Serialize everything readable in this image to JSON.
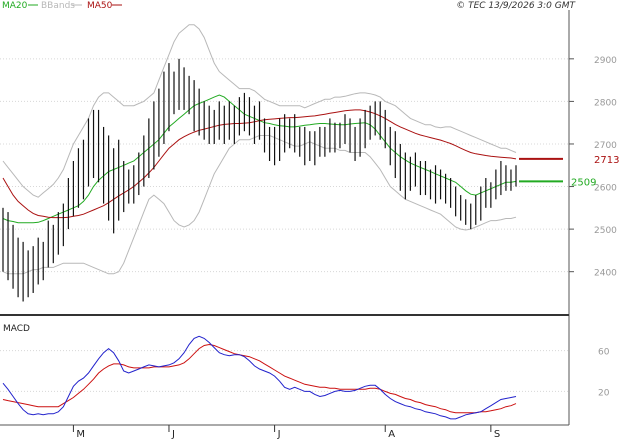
{
  "header": {
    "legend": [
      {
        "label": "MA20",
        "color": "#22aa22"
      },
      {
        "label": "BBands",
        "color": "#b8b8b8"
      },
      {
        "label": "MA50",
        "color": "#aa1111"
      }
    ],
    "copyright": "© TEC 13/9/2026 3:0 GMT"
  },
  "chart_data": [
    {
      "type": "bar",
      "subtype": "ohlc",
      "title": "",
      "ylim": [
        2310,
        3010
      ],
      "yticks": [
        2400,
        2500,
        2600,
        2700,
        2800,
        2900
      ],
      "ytick_labels": [
        "2400",
        "2500",
        "2600",
        "2700",
        "2800",
        "2900"
      ],
      "grid": true,
      "month_labels": [
        {
          "label": "M",
          "index": 14
        },
        {
          "label": "J",
          "index": 33
        },
        {
          "label": "J",
          "index": 54
        },
        {
          "label": "A",
          "index": 76
        },
        {
          "label": "S",
          "index": 97
        }
      ],
      "bars_high": [
        2550,
        2540,
        2510,
        2480,
        2470,
        2450,
        2460,
        2480,
        2470,
        2520,
        2510,
        2540,
        2560,
        2620,
        2660,
        2690,
        2710,
        2760,
        2780,
        2780,
        2740,
        2720,
        2690,
        2710,
        2660,
        2640,
        2650,
        2680,
        2720,
        2760,
        2800,
        2830,
        2870,
        2890,
        2870,
        2900,
        2880,
        2860,
        2850,
        2830,
        2800,
        2790,
        2780,
        2800,
        2790,
        2800,
        2790,
        2810,
        2820,
        2810,
        2790,
        2800,
        2760,
        2740,
        2740,
        2760,
        2770,
        2760,
        2770,
        2740,
        2740,
        2730,
        2730,
        2740,
        2740,
        2760,
        2750,
        2750,
        2770,
        2760,
        2740,
        2760,
        2780,
        2790,
        2800,
        2800,
        2780,
        2740,
        2730,
        2700,
        2680,
        2670,
        2680,
        2660,
        2660,
        2640,
        2650,
        2640,
        2630,
        2620,
        2600,
        2580,
        2570,
        2560,
        2580,
        2600,
        2620,
        2610,
        2640,
        2660,
        2650,
        2640,
        2650
      ],
      "bars_low": [
        2400,
        2380,
        2360,
        2340,
        2330,
        2340,
        2350,
        2370,
        2380,
        2410,
        2420,
        2440,
        2460,
        2500,
        2530,
        2550,
        2570,
        2600,
        2620,
        2610,
        2560,
        2520,
        2490,
        2520,
        2540,
        2560,
        2560,
        2580,
        2600,
        2620,
        2640,
        2670,
        2700,
        2730,
        2770,
        2780,
        2780,
        2770,
        2730,
        2720,
        2710,
        2700,
        2700,
        2710,
        2700,
        2710,
        2700,
        2720,
        2730,
        2720,
        2700,
        2710,
        2680,
        2660,
        2650,
        2660,
        2680,
        2690,
        2680,
        2670,
        2650,
        2660,
        2650,
        2670,
        2670,
        2680,
        2680,
        2690,
        2700,
        2680,
        2660,
        2670,
        2690,
        2710,
        2720,
        2710,
        2690,
        2650,
        2620,
        2590,
        2570,
        2590,
        2600,
        2580,
        2580,
        2570,
        2560,
        2570,
        2560,
        2550,
        2530,
        2520,
        2510,
        2500,
        2510,
        2520,
        2550,
        2550,
        2570,
        2580,
        2590,
        2590,
        2600
      ],
      "series": [
        {
          "name": "MA20",
          "color": "#22aa22",
          "values": [
            2525,
            2520,
            2518,
            2515,
            2515,
            2515,
            2515,
            2516,
            2520,
            2525,
            2530,
            2535,
            2540,
            2545,
            2550,
            2555,
            2565,
            2580,
            2600,
            2615,
            2625,
            2635,
            2640,
            2645,
            2650,
            2655,
            2660,
            2670,
            2680,
            2690,
            2700,
            2710,
            2725,
            2740,
            2750,
            2760,
            2770,
            2780,
            2790,
            2795,
            2800,
            2805,
            2810,
            2815,
            2810,
            2800,
            2790,
            2780,
            2770,
            2765,
            2760,
            2755,
            2750,
            2748,
            2745,
            2743,
            2742,
            2740,
            2740,
            2742,
            2744,
            2745,
            2747,
            2748,
            2748,
            2747,
            2746,
            2745,
            2745,
            2747,
            2748,
            2749,
            2750,
            2745,
            2735,
            2720,
            2705,
            2690,
            2680,
            2670,
            2662,
            2655,
            2650,
            2645,
            2640,
            2635,
            2630,
            2625,
            2620,
            2615,
            2610,
            2600,
            2590,
            2582,
            2580,
            2585,
            2590,
            2595,
            2600,
            2605,
            2610,
            2610,
            2612
          ]
        },
        {
          "name": "MA50",
          "color": "#aa1111",
          "values": [
            2620,
            2600,
            2580,
            2565,
            2555,
            2545,
            2537,
            2532,
            2530,
            2528,
            2527,
            2527,
            2527,
            2528,
            2530,
            2532,
            2535,
            2540,
            2545,
            2550,
            2555,
            2562,
            2570,
            2578,
            2585,
            2592,
            2600,
            2610,
            2620,
            2632,
            2645,
            2660,
            2675,
            2690,
            2700,
            2710,
            2717,
            2723,
            2728,
            2732,
            2735,
            2738,
            2741,
            2744,
            2746,
            2747,
            2748,
            2748,
            2749,
            2750,
            2752,
            2755,
            2757,
            2758,
            2759,
            2760,
            2761,
            2762,
            2762,
            2763,
            2764,
            2765,
            2766,
            2768,
            2770,
            2772,
            2774,
            2776,
            2778,
            2779,
            2780,
            2780,
            2778,
            2775,
            2771,
            2766,
            2760,
            2753,
            2746,
            2740,
            2735,
            2730,
            2725,
            2721,
            2718,
            2715,
            2712,
            2709,
            2705,
            2701,
            2696,
            2690,
            2685,
            2680,
            2677,
            2675,
            2673,
            2671,
            2670,
            2669,
            2668,
            2667,
            2665
          ]
        },
        {
          "name": "BBands",
          "color": "#b8b8b8",
          "values_upper": [
            2660,
            2645,
            2630,
            2615,
            2600,
            2590,
            2580,
            2575,
            2585,
            2595,
            2605,
            2620,
            2640,
            2670,
            2700,
            2720,
            2740,
            2760,
            2790,
            2810,
            2820,
            2820,
            2810,
            2800,
            2790,
            2790,
            2790,
            2795,
            2800,
            2810,
            2820,
            2850,
            2880,
            2910,
            2940,
            2960,
            2970,
            2980,
            2980,
            2970,
            2950,
            2920,
            2890,
            2870,
            2860,
            2850,
            2840,
            2830,
            2830,
            2830,
            2825,
            2815,
            2805,
            2800,
            2795,
            2790,
            2790,
            2790,
            2790,
            2790,
            2785,
            2790,
            2795,
            2800,
            2805,
            2805,
            2810,
            2810,
            2812,
            2815,
            2818,
            2820,
            2820,
            2818,
            2815,
            2810,
            2800,
            2795,
            2790,
            2780,
            2770,
            2760,
            2755,
            2750,
            2745,
            2745,
            2740,
            2738,
            2740,
            2740,
            2735,
            2730,
            2725,
            2720,
            2715,
            2710,
            2705,
            2700,
            2695,
            2690,
            2690,
            2685,
            2680
          ],
          "values_lower": [
            2400,
            2395,
            2395,
            2395,
            2395,
            2400,
            2405,
            2405,
            2410,
            2410,
            2410,
            2415,
            2420,
            2420,
            2420,
            2420,
            2420,
            2415,
            2410,
            2405,
            2400,
            2395,
            2395,
            2400,
            2420,
            2450,
            2480,
            2510,
            2540,
            2570,
            2580,
            2570,
            2560,
            2540,
            2520,
            2510,
            2505,
            2510,
            2520,
            2540,
            2570,
            2600,
            2630,
            2650,
            2670,
            2690,
            2700,
            2710,
            2710,
            2710,
            2715,
            2720,
            2720,
            2720,
            2715,
            2710,
            2705,
            2700,
            2695,
            2695,
            2700,
            2705,
            2700,
            2695,
            2690,
            2690,
            2690,
            2685,
            2685,
            2680,
            2680,
            2680,
            2680,
            2670,
            2655,
            2640,
            2620,
            2600,
            2590,
            2580,
            2570,
            2565,
            2560,
            2555,
            2550,
            2545,
            2540,
            2535,
            2525,
            2515,
            2505,
            2500,
            2498,
            2500,
            2505,
            2510,
            2515,
            2520,
            2520,
            2522,
            2525,
            2525,
            2528
          ]
        }
      ]
    },
    {
      "type": "line",
      "title": "MACD",
      "ylim": [
        -12,
        92
      ],
      "yticks": [
        20,
        60
      ],
      "ytick_labels": [
        "20",
        "60"
      ],
      "grid": true,
      "series": [
        {
          "name": "MACD",
          "color": "#2222cc",
          "values": [
            28,
            22,
            15,
            8,
            2,
            -2,
            -3,
            -2,
            -3,
            -2,
            -2,
            0,
            5,
            15,
            25,
            30,
            33,
            38,
            45,
            52,
            58,
            62,
            58,
            50,
            40,
            38,
            40,
            42,
            44,
            46,
            45,
            44,
            45,
            46,
            48,
            52,
            58,
            66,
            72,
            74,
            72,
            68,
            63,
            58,
            56,
            55,
            56,
            56,
            54,
            50,
            45,
            42,
            40,
            38,
            35,
            30,
            24,
            22,
            24,
            22,
            20,
            20,
            17,
            15,
            16,
            18,
            20,
            21,
            20,
            20,
            21,
            23,
            25,
            26,
            26,
            22,
            17,
            13,
            10,
            8,
            6,
            5,
            3,
            2,
            0,
            -1,
            -2,
            -4,
            -5,
            -7,
            -7,
            -5,
            -3,
            -2,
            -1,
            0,
            3,
            6,
            9,
            12,
            13,
            14,
            15
          ]
        },
        {
          "name": "Signal",
          "color": "#cc1111",
          "values": [
            12,
            11,
            10,
            9,
            8,
            7,
            6,
            5,
            5,
            5,
            5,
            5,
            8,
            11,
            14,
            18,
            22,
            27,
            32,
            38,
            42,
            45,
            47,
            47,
            46,
            44,
            43,
            43,
            43,
            43,
            44,
            44,
            44,
            44,
            45,
            46,
            48,
            52,
            57,
            62,
            65,
            66,
            65,
            63,
            61,
            59,
            57,
            56,
            55,
            54,
            52,
            50,
            47,
            44,
            41,
            38,
            35,
            33,
            31,
            29,
            27,
            26,
            25,
            24,
            24,
            23,
            23,
            22,
            22,
            22,
            22,
            22,
            22,
            23,
            23,
            22,
            20,
            18,
            17,
            15,
            13,
            12,
            10,
            9,
            7,
            6,
            5,
            3,
            2,
            0,
            -1,
            -1,
            -1,
            -1,
            -1,
            0,
            0,
            1,
            2,
            3,
            5,
            6,
            8
          ]
        }
      ]
    }
  ]
}
